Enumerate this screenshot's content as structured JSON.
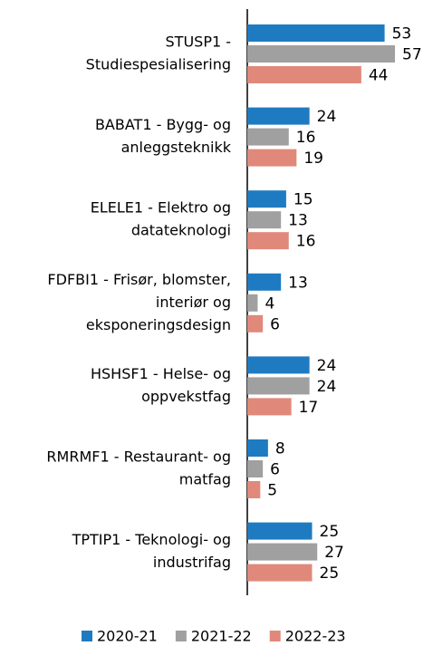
{
  "chart_data": {
    "type": "bar",
    "orientation": "horizontal",
    "categories": [
      [
        "STUSP1 -",
        "Studiespesialisering"
      ],
      [
        "BABAT1 - Bygg- og",
        "anleggsteknikk"
      ],
      [
        "ELELE1 - Elektro og",
        "datateknologi"
      ],
      [
        "FDFBI1 - Frisør, blomster,",
        "interiør og",
        "eksponeringsdesign"
      ],
      [
        "HSHSF1 - Helse- og",
        "oppvekstfag"
      ],
      [
        "RMRMF1 - Restaurant- og",
        "matfag"
      ],
      [
        "TPTIP1 - Teknologi- og",
        "industrifag"
      ]
    ],
    "series": [
      {
        "name": "2020-21",
        "color": "#1f7bc1",
        "values": [
          53,
          24,
          15,
          13,
          24,
          8,
          25
        ]
      },
      {
        "name": "2021-22",
        "color": "#a0a0a0",
        "values": [
          57,
          16,
          13,
          4,
          24,
          6,
          27
        ]
      },
      {
        "name": "2022-23",
        "color": "#e0897a",
        "values": [
          44,
          19,
          16,
          6,
          17,
          5,
          25
        ]
      }
    ],
    "legend": "bottom"
  }
}
